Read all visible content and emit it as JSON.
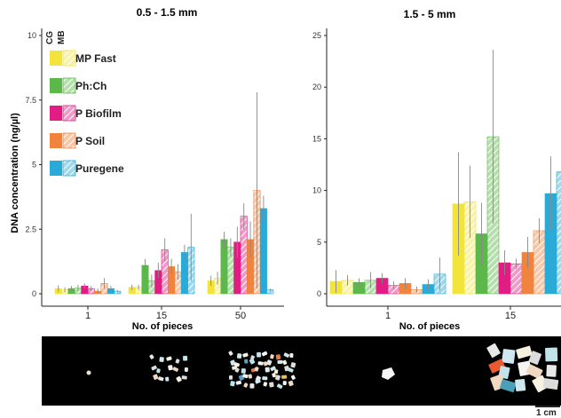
{
  "chart_data": [
    {
      "type": "bar",
      "title": "0.5 - 1.5 mm",
      "xlabel": "No. of pieces",
      "ylabel": "DNA concentration (ng/µl)",
      "ylim": [
        0,
        10
      ],
      "yticks": [
        "0",
        "2.5",
        "5",
        "7.5",
        "10"
      ],
      "categories": [
        "1",
        "15",
        "50"
      ],
      "legend": {
        "placement": "top-left",
        "column_headers": [
          "CG",
          "MB"
        ]
      },
      "series": [
        {
          "name": "MP Fast CG",
          "color": "#f2e43b",
          "hatched": false,
          "values": [
            0.2,
            0.25,
            0.5
          ],
          "err": [
            0.12,
            0.1,
            0.2
          ]
        },
        {
          "name": "MP Fast MB",
          "color": "#f2e43b",
          "hatched": true,
          "values": [
            0.15,
            0.25,
            0.6
          ],
          "err": [
            0.1,
            0.1,
            0.25
          ]
        },
        {
          "name": "Ph:Ch CG",
          "color": "#5cb84a",
          "hatched": false,
          "values": [
            0.2,
            1.1,
            2.1
          ],
          "err": [
            0.1,
            0.25,
            0.3
          ]
        },
        {
          "name": "Ph:Ch MB",
          "color": "#5cb84a",
          "hatched": true,
          "values": [
            0.22,
            0.5,
            1.8
          ],
          "err": [
            0.12,
            0.25,
            0.35
          ]
        },
        {
          "name": "P Biofilm CG",
          "color": "#e11d84",
          "hatched": false,
          "values": [
            0.3,
            0.9,
            2.0
          ],
          "err": [
            0.1,
            0.3,
            0.6
          ]
        },
        {
          "name": "P Biofilm MB",
          "color": "#e11d84",
          "hatched": true,
          "values": [
            0.2,
            1.7,
            3.0
          ],
          "err": [
            0.1,
            0.45,
            0.5
          ]
        },
        {
          "name": "P Soil CG",
          "color": "#f0843e",
          "hatched": false,
          "values": [
            0.1,
            1.05,
            2.1
          ],
          "err": [
            0.1,
            0.3,
            0.7
          ]
        },
        {
          "name": "P Soil MB",
          "color": "#f0843e",
          "hatched": true,
          "values": [
            0.4,
            0.85,
            4.0
          ],
          "err": [
            0.2,
            0.3,
            3.8
          ]
        },
        {
          "name": "Puregene CG",
          "color": "#2aaad6",
          "hatched": false,
          "values": [
            0.2,
            1.6,
            3.3
          ],
          "err": [
            0.1,
            0.3,
            0.5
          ]
        },
        {
          "name": "Puregene MB",
          "color": "#2aaad6",
          "hatched": true,
          "values": [
            0.1,
            1.8,
            0.15
          ],
          "err": [
            0.05,
            1.3,
            0.05
          ]
        }
      ]
    },
    {
      "type": "bar",
      "title": "1.5 - 5 mm",
      "xlabel": "No. of pieces",
      "ylabel": "",
      "ylim": [
        0,
        25
      ],
      "yticks": [
        "0",
        "5",
        "10",
        "15",
        "20",
        "25"
      ],
      "categories": [
        "1",
        "15"
      ],
      "series": [
        {
          "name": "MP Fast CG",
          "values": [
            1.2,
            8.7
          ],
          "err": [
            1.1,
            5.0
          ]
        },
        {
          "name": "MP Fast MB",
          "values": [
            1.3,
            8.9
          ],
          "err": [
            0.5,
            3.5
          ]
        },
        {
          "name": "Ph:Ch CG",
          "values": [
            1.1,
            5.8
          ],
          "err": [
            0.4,
            3.0
          ]
        },
        {
          "name": "Ph:Ch MB",
          "values": [
            1.3,
            15.2
          ],
          "err": [
            0.8,
            8.4
          ]
        },
        {
          "name": "P Biofilm CG",
          "values": [
            1.5,
            3.0
          ],
          "err": [
            0.5,
            1.2
          ]
        },
        {
          "name": "P Biofilm MB",
          "values": [
            0.8,
            2.9
          ],
          "err": [
            0.4,
            0.5
          ]
        },
        {
          "name": "P Soil CG",
          "values": [
            1.0,
            4.0
          ],
          "err": [
            0.5,
            1.5
          ]
        },
        {
          "name": "P Soil MB",
          "values": [
            0.4,
            6.1
          ],
          "err": [
            0.3,
            1.2
          ]
        },
        {
          "name": "Puregene CG",
          "values": [
            0.9,
            9.7
          ],
          "err": [
            0.5,
            3.6
          ]
        },
        {
          "name": "Puregene MB",
          "values": [
            1.9,
            11.8
          ],
          "err": [
            1.6,
            3.4
          ]
        }
      ]
    }
  ],
  "legend_entries": [
    "MP Fast",
    "Ph:Ch",
    "P Biofilm",
    "P Soil",
    "Puregene"
  ],
  "scale_bar": "1 cm"
}
